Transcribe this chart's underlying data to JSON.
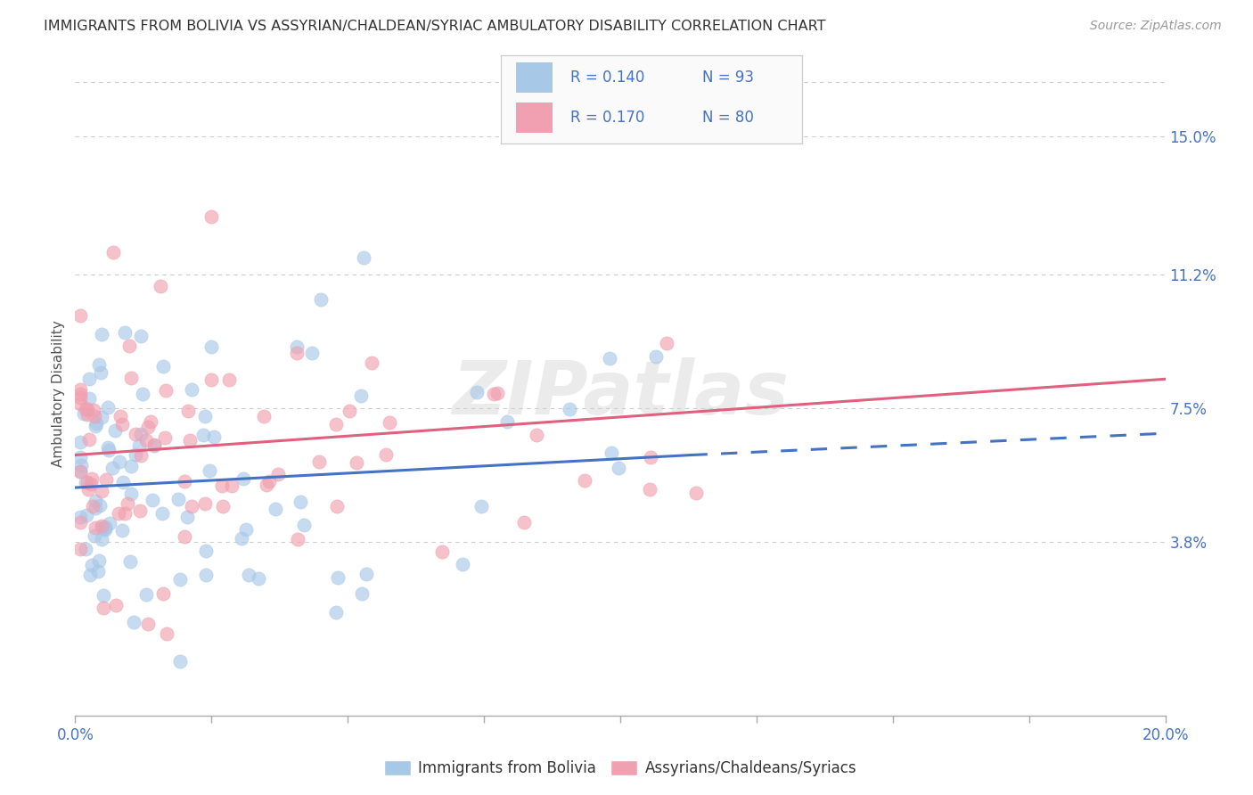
{
  "title": "IMMIGRANTS FROM BOLIVIA VS ASSYRIAN/CHALDEAN/SYRIAC AMBULATORY DISABILITY CORRELATION CHART",
  "source": "Source: ZipAtlas.com",
  "ylabel": "Ambulatory Disability",
  "ytick_labels": [
    "15.0%",
    "11.2%",
    "7.5%",
    "3.8%"
  ],
  "ytick_values": [
    0.15,
    0.112,
    0.075,
    0.038
  ],
  "xlim": [
    0.0,
    0.2
  ],
  "ylim": [
    -0.01,
    0.168
  ],
  "legend_r1": "R = 0.140",
  "legend_n1": "N = 93",
  "legend_r2": "R = 0.170",
  "legend_n2": "N = 80",
  "color_bolivia": "#A8C8E8",
  "color_assyrian": "#F0A0B0",
  "color_blue": "#4472C4",
  "color_pink": "#E06080",
  "color_legend_text": "#4472C4",
  "color_grid": "#CCCCCC",
  "watermark": "ZIPatlas",
  "legend1_label": "Immigrants from Bolivia",
  "legend2_label": "Assyrians/Chaldeans/Syriacs",
  "background_color": "#FFFFFF",
  "bolivia_line_x0": 0.0,
  "bolivia_line_x1": 0.113,
  "bolivia_line_x2": 0.2,
  "bolivia_line_y0": 0.053,
  "bolivia_line_y1": 0.062,
  "bolivia_line_y2": 0.068,
  "assyrian_line_x0": 0.0,
  "assyrian_line_x1": 0.2,
  "assyrian_line_y0": 0.062,
  "assyrian_line_y1": 0.083
}
